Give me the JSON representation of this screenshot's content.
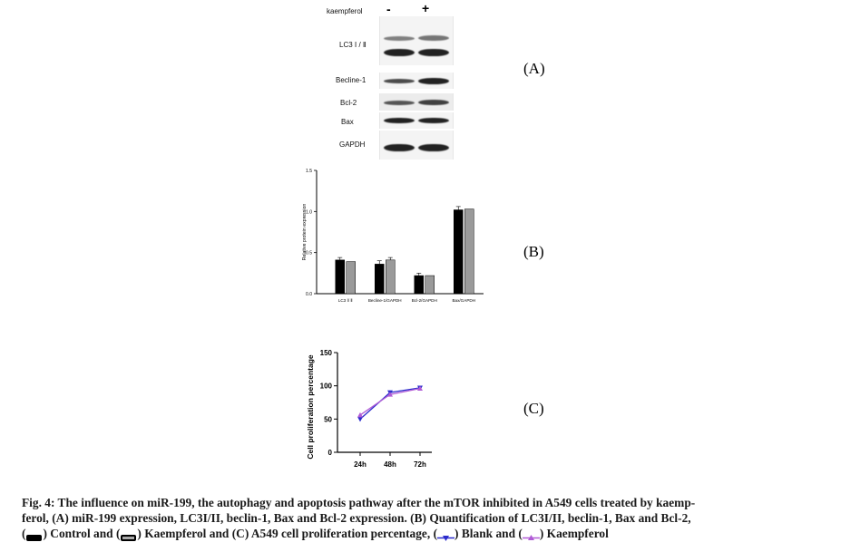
{
  "panel_a": {
    "treatment_label": "kaempferol",
    "minus": "-",
    "plus": "+",
    "rows": [
      "LC3 Ⅰ / Ⅱ",
      "Becline-1",
      "Bcl-2",
      "Bax",
      "GAPDH"
    ],
    "letter": "(A)"
  },
  "panel_b_letter": "(B)",
  "panel_c_letter": "(C)",
  "chart_data": [
    {
      "type": "bar",
      "title": "",
      "xlabel": "",
      "ylabel": "Relative protein expression",
      "ylim": [
        0,
        1.5
      ],
      "yticks": [
        "0.0",
        "0.5",
        "1.0",
        "1.5"
      ],
      "categories": [
        "LC3 Ⅰ/ Ⅱ",
        "Becline-1/GAPDH",
        "Bcl-2/GAPDH",
        "Bax/GAPDH"
      ],
      "series": [
        {
          "name": "Control",
          "color": "#000000",
          "values": [
            0.41,
            0.36,
            0.22,
            1.02
          ],
          "errors": [
            0.03,
            0.04,
            0.03,
            0.04
          ]
        },
        {
          "name": "Kaempferol",
          "color": "#9a9a9a",
          "values": [
            0.39,
            0.41,
            0.22,
            1.03
          ],
          "errors": [
            0.0,
            0.03,
            0.0,
            0.0
          ]
        }
      ],
      "grid": false
    },
    {
      "type": "line",
      "title": "",
      "xlabel": "",
      "ylabel": "Cell proliferation percentage",
      "ylim": [
        0,
        150
      ],
      "yticks": [
        "0",
        "50",
        "100",
        "150"
      ],
      "categories": [
        "24h",
        "48h",
        "72h"
      ],
      "series": [
        {
          "name": "Blank",
          "color": "#2c2ccc",
          "marker": "triangle-down",
          "values": [
            50,
            90,
            97
          ]
        },
        {
          "name": "Kaempferol",
          "color": "#b15cd6",
          "marker": "triangle-up",
          "values": [
            56,
            87,
            96
          ]
        }
      ],
      "grid": false
    }
  ],
  "caption": {
    "line1": "Fig. 4: The influence on miR-199, the autophagy and apoptosis pathway after the mTOR inhibited in A549 cells treated by kaemp-",
    "line2": "ferol, (A) miR-199 expression, LC3I/II, beclin-1, Bax and Bcl-2 expression. (B) Quantification of LC3I/II, beclin-1, Bax and Bcl-2,",
    "l3_open": "(",
    "l3_control": ") Control and (",
    "l3_kaemp": ") Kaempferol and (C) A549 cell proliferation percentage, (",
    "l3_blank": ") Blank and (",
    "l3_end": ") Kaempferol"
  }
}
